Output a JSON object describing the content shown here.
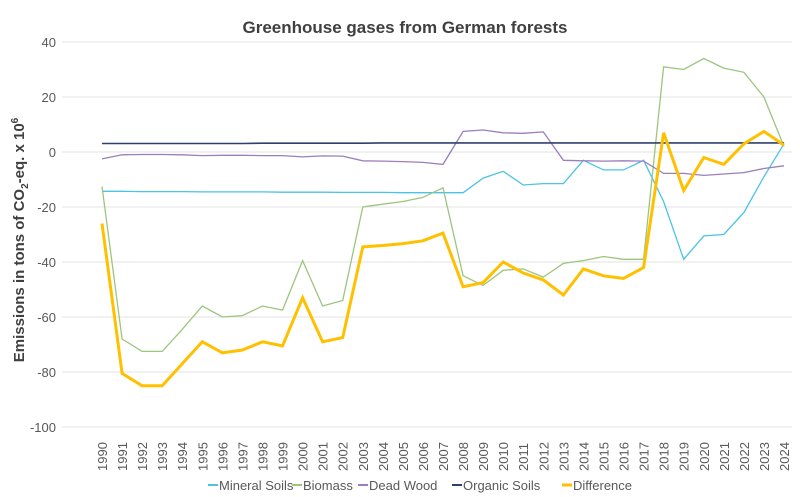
{
  "chart_data": {
    "type": "line",
    "title": "Greenhouse gases from German forests",
    "ylabel_parts": {
      "a": "Emissions in tons of CO",
      "sub": "2",
      "b": "-eq. x 10",
      "sup": "6"
    },
    "xlabel": "",
    "ylim": [
      -100,
      40
    ],
    "yticks": [
      40,
      20,
      0,
      -20,
      -40,
      -60,
      -80,
      -100
    ],
    "grid": true,
    "legend_position": "bottom",
    "categories": [
      "1990",
      "1991",
      "1992",
      "1993",
      "1994",
      "1995",
      "1996",
      "1997",
      "1998",
      "1999",
      "2000",
      "2001",
      "2002",
      "2003",
      "2004",
      "2005",
      "2006",
      "2007",
      "2008",
      "2009",
      "2010",
      "2011",
      "2012",
      "2013",
      "2014",
      "2015",
      "2016",
      "2017",
      "2018",
      "2019",
      "2020",
      "2021",
      "2022",
      "2023",
      "2024"
    ],
    "series": [
      {
        "name": "Mineral Soils",
        "color": "#4bc3e6",
        "width": 1.3,
        "values": [
          -14.3,
          -14.3,
          -14.4,
          -14.4,
          -14.4,
          -14.5,
          -14.5,
          -14.5,
          -14.5,
          -14.6,
          -14.6,
          -14.6,
          -14.7,
          -14.7,
          -14.7,
          -14.8,
          -14.8,
          -14.8,
          -14.8,
          -9.5,
          -7,
          -12,
          -11.5,
          -11.5,
          -3,
          -6.5,
          -6.5,
          -3,
          -18,
          -39,
          -30.5,
          -30,
          -22,
          -9,
          3
        ]
      },
      {
        "name": "Biomass",
        "color": "#9cc57e",
        "width": 1.3,
        "values": [
          -12.5,
          -68,
          -72.5,
          -72.5,
          -64.5,
          -56,
          -60,
          -59.5,
          -56,
          -57.5,
          -39.5,
          -56,
          -54,
          -20,
          -19,
          -18,
          -16.5,
          -13,
          -45,
          -48.5,
          -43,
          -42.5,
          -45.5,
          -40.5,
          -39.5,
          -38,
          -39,
          -39,
          31,
          30,
          34,
          30.5,
          29,
          20,
          2
        ]
      },
      {
        "name": "Dead Wood",
        "color": "#9b7ebd",
        "width": 1.3,
        "values": [
          -2.5,
          -1,
          -0.9,
          -0.9,
          -1,
          -1.3,
          -1.2,
          -1.2,
          -1.3,
          -1.3,
          -1.8,
          -1.4,
          -1.5,
          -3.2,
          -3.3,
          -3.5,
          -3.8,
          -4.5,
          7.5,
          8,
          7,
          6.8,
          7.3,
          -3,
          -3.2,
          -3.3,
          -3.2,
          -3.3,
          -7.8,
          -7.8,
          -8.5,
          -8,
          -7.5,
          -6,
          -5
        ]
      },
      {
        "name": "Organic Soils",
        "color": "#2f3f6e",
        "width": 1.6,
        "values": [
          3.1,
          3.1,
          3.1,
          3.1,
          3.1,
          3.1,
          3.1,
          3.1,
          3.2,
          3.2,
          3.2,
          3.2,
          3.2,
          3.2,
          3.3,
          3.3,
          3.3,
          3.3,
          3.3,
          3.3,
          3.3,
          3.3,
          3.3,
          3.3,
          3.3,
          3.3,
          3.3,
          3.3,
          3.3,
          3.3,
          3.3,
          3.3,
          3.3,
          3.3,
          3.3
        ]
      },
      {
        "name": "Difference",
        "color": "#ffc000",
        "width": 3,
        "values": [
          -26,
          -80.5,
          -85,
          -85,
          -77,
          -69,
          -73,
          -72,
          -69,
          -70.5,
          -53,
          -69,
          -67.5,
          -34.5,
          -34,
          -33.3,
          -32.3,
          -29.5,
          -49,
          -47.5,
          -40,
          -44,
          -46.5,
          -52,
          -42.5,
          -45,
          -46,
          -42,
          7,
          -14,
          -2,
          -4.5,
          3,
          7.5,
          2.5
        ]
      }
    ]
  }
}
